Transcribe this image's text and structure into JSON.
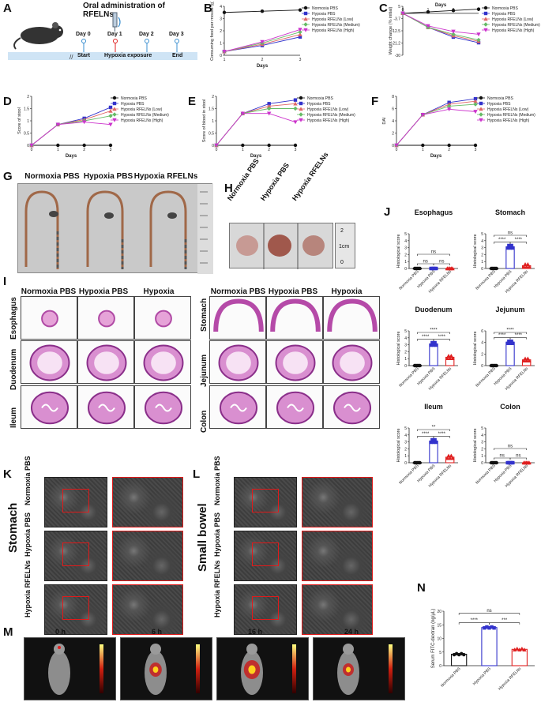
{
  "panels": {
    "A": "A",
    "B": "B",
    "C": "C",
    "D": "D",
    "E": "E",
    "F": "F",
    "G": "G",
    "H": "H",
    "I": "I",
    "J": "J",
    "K": "K",
    "L": "L",
    "M": "M",
    "N": "N"
  },
  "panel_a": {
    "title": "Oral administration of RFELNs",
    "days": [
      "Day 0",
      "Day 1",
      "Day 2",
      "Day 3"
    ],
    "start": "Start",
    "hypoxia": "Hypoxia exposure",
    "end": "End"
  },
  "legend_groups": [
    "Normoxia PBS",
    "Hypoxia PBS",
    "Hypoxia RFELNs (Low)",
    "Hypoxia RFELNs (Medium)",
    "Hypoxia RFELNs (High)"
  ],
  "groups3": [
    "Normoxia PBS",
    "Hypoxia PBS",
    "Hypoxia RFELNs"
  ],
  "chart_data": [
    {
      "panel": "B",
      "type": "line",
      "ylabel": "Consuming food per mouse (g)",
      "xlabel": "Days",
      "x": [
        1,
        2,
        3
      ],
      "ylim": [
        0,
        4
      ],
      "series": [
        {
          "name": "Normoxia PBS",
          "values": [
            3.5,
            3.6,
            3.7
          ]
        },
        {
          "name": "Hypoxia PBS",
          "values": [
            0.3,
            0.8,
            1.5
          ]
        },
        {
          "name": "Hypoxia RFELNs (Low)",
          "values": [
            0.3,
            0.9,
            1.7
          ]
        },
        {
          "name": "Hypoxia RFELNs (Medium)",
          "values": [
            0.3,
            1.0,
            1.9
          ]
        },
        {
          "name": "Hypoxia RFELNs (High)",
          "values": [
            0.3,
            1.1,
            2.1
          ]
        }
      ]
    },
    {
      "panel": "C",
      "type": "line",
      "ylabel": "Weight change (% initial)",
      "xlabel": "Days",
      "x": [
        0,
        1,
        2,
        3
      ],
      "ylim": [
        -30,
        5
      ],
      "series": [
        {
          "name": "Normoxia PBS",
          "values": [
            0,
            1,
            2,
            3
          ]
        },
        {
          "name": "Hypoxia PBS",
          "values": [
            0,
            -10,
            -17,
            -21
          ]
        },
        {
          "name": "Hypoxia RFELNs (Low)",
          "values": [
            0,
            -10,
            -16,
            -20
          ]
        },
        {
          "name": "Hypoxia RFELNs (Medium)",
          "values": [
            0,
            -10,
            -15,
            -19
          ]
        },
        {
          "name": "Hypoxia RFELNs (High)",
          "values": [
            0,
            -9,
            -13,
            -15
          ]
        }
      ]
    },
    {
      "panel": "D",
      "type": "line",
      "ylabel": "Score of stool",
      "xlabel": "Days",
      "x": [
        0,
        1,
        2,
        3
      ],
      "ylim": [
        0,
        2.0
      ],
      "series": [
        {
          "name": "Normoxia PBS",
          "values": [
            0,
            0,
            0,
            0
          ]
        },
        {
          "name": "Hypoxia PBS",
          "values": [
            0,
            0.85,
            1.1,
            1.55
          ]
        },
        {
          "name": "Hypoxia RFELNs (Low)",
          "values": [
            0,
            0.85,
            1.05,
            1.4
          ]
        },
        {
          "name": "Hypoxia RFELNs (Medium)",
          "values": [
            0,
            0.85,
            1.0,
            1.2
          ]
        },
        {
          "name": "Hypoxia RFELNs (High)",
          "values": [
            0,
            0.85,
            0.95,
            0.85
          ]
        }
      ]
    },
    {
      "panel": "E",
      "type": "line",
      "ylabel": "Score of blood in stool",
      "xlabel": "Days",
      "x": [
        0,
        1,
        2,
        3
      ],
      "ylim": [
        0,
        2.0
      ],
      "series": [
        {
          "name": "Normoxia PBS",
          "values": [
            0,
            0,
            0,
            0
          ]
        },
        {
          "name": "Hypoxia PBS",
          "values": [
            0,
            1.3,
            1.7,
            1.85
          ]
        },
        {
          "name": "Hypoxia RFELNs (Low)",
          "values": [
            0,
            1.3,
            1.6,
            1.7
          ]
        },
        {
          "name": "Hypoxia RFELNs (Medium)",
          "values": [
            0,
            1.3,
            1.5,
            1.5
          ]
        },
        {
          "name": "Hypoxia RFELNs (High)",
          "values": [
            0,
            1.3,
            1.3,
            0.95
          ]
        }
      ]
    },
    {
      "panel": "F",
      "type": "line",
      "ylabel": "DAI",
      "xlabel": "Days",
      "x": [
        0,
        1,
        2,
        3
      ],
      "ylim": [
        0,
        8
      ],
      "series": [
        {
          "name": "Normoxia PBS",
          "values": [
            0,
            0,
            0,
            0
          ]
        },
        {
          "name": "Hypoxia PBS",
          "values": [
            0,
            5.0,
            7.0,
            7.6
          ]
        },
        {
          "name": "Hypoxia RFELNs (Low)",
          "values": [
            0,
            5.0,
            6.7,
            7.2
          ]
        },
        {
          "name": "Hypoxia RFELNs (Medium)",
          "values": [
            0,
            5.0,
            6.4,
            6.7
          ]
        },
        {
          "name": "Hypoxia RFELNs (High)",
          "values": [
            0,
            5.0,
            5.9,
            5.5
          ]
        }
      ]
    },
    {
      "panel": "J",
      "type": "bar",
      "title": "Esophagus",
      "ylabel": "Histological score",
      "categories": [
        "Normoxia PBS",
        "Hypoxia PBS",
        "Hypoxia RFELNs"
      ],
      "values": [
        0,
        0,
        0
      ],
      "ylim": [
        0,
        5
      ],
      "annotations": [
        "ns",
        "ns",
        "ns"
      ]
    },
    {
      "panel": "J",
      "type": "bar",
      "title": "Stomach",
      "ylabel": "Histological score",
      "categories": [
        "Normoxia PBS",
        "Hypoxia PBS",
        "Hypoxia RFELNs"
      ],
      "values": [
        0,
        3.1,
        0.4
      ],
      "ylim": [
        0,
        5
      ],
      "annotations": [
        "ns",
        "****",
        "****"
      ]
    },
    {
      "panel": "J",
      "type": "bar",
      "title": "Duodenum",
      "ylabel": "Histological score",
      "categories": [
        "Normoxia PBS",
        "Hypoxia PBS",
        "Hypoxia RFELNs"
      ],
      "values": [
        0,
        3.1,
        1.2
      ],
      "ylim": [
        0,
        5
      ],
      "annotations": [
        "****",
        "****",
        "****"
      ]
    },
    {
      "panel": "J",
      "type": "bar",
      "title": "Jejunum",
      "ylabel": "Histological score",
      "categories": [
        "Normoxia PBS",
        "Hypoxia PBS",
        "Hypoxia RFELNs"
      ],
      "values": [
        0,
        4.0,
        1.0
      ],
      "ylim": [
        0,
        6
      ],
      "annotations": [
        "****",
        "****",
        "****"
      ]
    },
    {
      "panel": "J",
      "type": "bar",
      "title": "Ileum",
      "ylabel": "Histological score",
      "categories": [
        "Normoxia PBS",
        "Hypoxia PBS",
        "Hypoxia RFELNs"
      ],
      "values": [
        0,
        3.1,
        0.8
      ],
      "ylim": [
        0,
        5
      ],
      "annotations": [
        "**",
        "****",
        "****"
      ]
    },
    {
      "panel": "J",
      "type": "bar",
      "title": "Colon",
      "ylabel": "Histological score",
      "categories": [
        "Normoxia PBS",
        "Hypoxia PBS",
        "Hypoxia RFELNs"
      ],
      "values": [
        0,
        0,
        0
      ],
      "ylim": [
        0,
        5
      ],
      "annotations": [
        "ns",
        "ns",
        "ns"
      ]
    },
    {
      "panel": "N",
      "type": "bar",
      "ylabel": "Serum FITC-dextran (ng/μL)",
      "categories": [
        "Normoxia PBS",
        "Hypoxia PBS",
        "Hypoxia RFELNs"
      ],
      "values": [
        4.2,
        14.0,
        6.0
      ],
      "ylim": [
        0,
        20
      ],
      "annotations": [
        "ns",
        "****",
        "***"
      ]
    }
  ],
  "panel_g": {
    "labels": [
      "Normoxia PBS",
      "Hypoxia PBS",
      "Hypoxia RFELNs"
    ]
  },
  "panel_h": {
    "labels": [
      "Normoxia PBS",
      "Hypoxia PBS",
      "Hypoxia RFELNs"
    ],
    "ruler": [
      "0",
      "1cm",
      "2"
    ]
  },
  "panel_i": {
    "left_tissues": [
      "Esophagus",
      "Duodenum",
      "Ileum"
    ],
    "right_tissues": [
      "Stomach",
      "Jejunum",
      "Colon"
    ]
  },
  "panel_k": {
    "tissue": "Stomach",
    "rows": [
      "Normoxia PBS",
      "Hypoxia PBS",
      "Hypoxia RFELNs"
    ]
  },
  "panel_l": {
    "tissue": "Small bowel",
    "rows": [
      "Normoxia PBS",
      "Hypoxia PBS",
      "Hypoxia RFELNs"
    ]
  },
  "panel_m": {
    "times": [
      "0 h",
      "6 h",
      "16 h",
      "24 h"
    ]
  },
  "colors": {
    "normoxia": "#111111",
    "hypoxia": "#3333cc",
    "low": "#e06666",
    "medium": "#66bb66",
    "high": "#cc33cc",
    "rfelns": "#e02020"
  }
}
